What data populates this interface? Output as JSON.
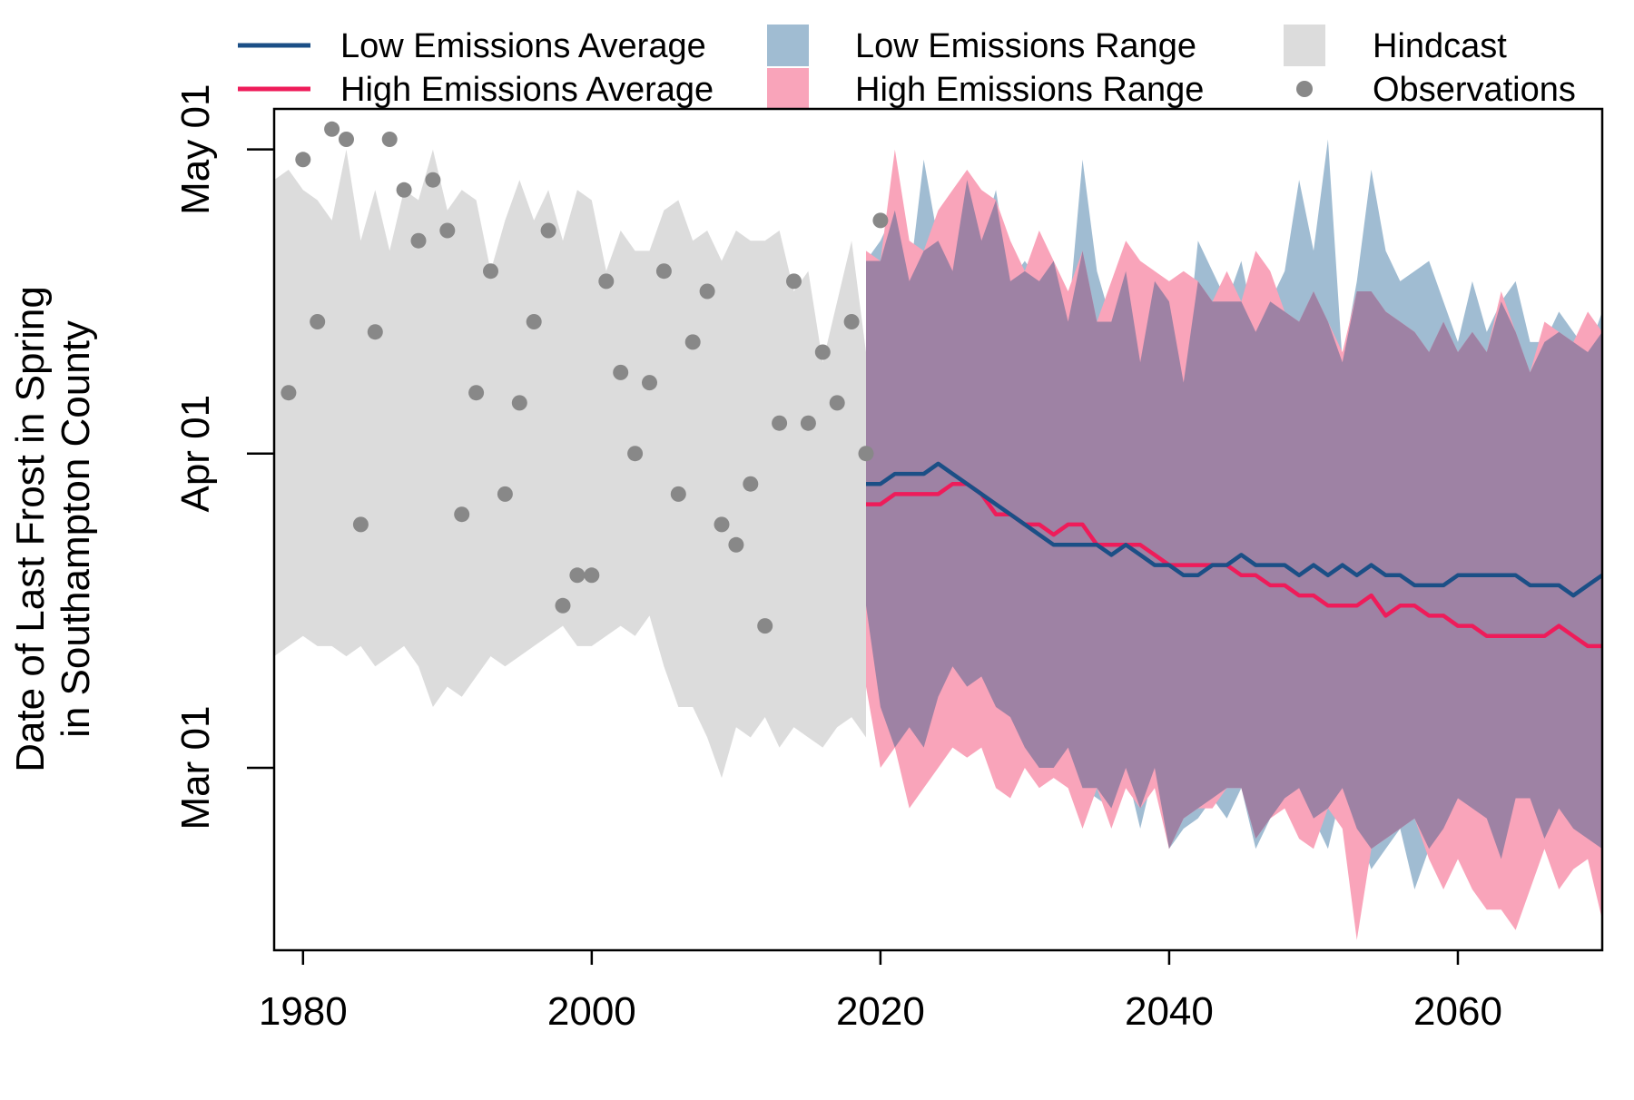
{
  "chart_data": {
    "type": "line",
    "title": "",
    "xlabel": "",
    "ylabel_line1": "Date of Last Frost in Spring",
    "ylabel_line2": "in Southampton County",
    "xlim": [
      1978,
      2070
    ],
    "ylim": [
      42,
      125
    ],
    "x_ticks": [
      {
        "value": 1980,
        "label": "1980"
      },
      {
        "value": 2000,
        "label": "2000"
      },
      {
        "value": 2020,
        "label": "2020"
      },
      {
        "value": 2040,
        "label": "2040"
      },
      {
        "value": 2060,
        "label": "2060"
      }
    ],
    "y_ticks": [
      {
        "value": 60,
        "label": "Mar 01"
      },
      {
        "value": 91,
        "label": "Apr 01"
      },
      {
        "value": 121,
        "label": "May 01"
      }
    ],
    "grid": false,
    "legend_position": "top",
    "legend": [
      {
        "key": "low_avg",
        "label": "Low Emissions Average",
        "kind": "line",
        "color": "#1b4f86"
      },
      {
        "key": "low_range",
        "label": "Low Emissions Range",
        "kind": "fill",
        "color": "#a0bcd2"
      },
      {
        "key": "hindcast",
        "label": "Hindcast",
        "kind": "fill",
        "color": "#dcdcdc"
      },
      {
        "key": "high_avg",
        "label": "High Emissions Average",
        "kind": "line",
        "color": "#ee1c5a"
      },
      {
        "key": "high_range",
        "label": "High Emissions Range",
        "kind": "fill",
        "color": "#f9a4ba"
      },
      {
        "key": "observations",
        "label": "Observations",
        "kind": "point",
        "color": "#888888"
      }
    ],
    "colors": {
      "hindcast": "#dcdcdc",
      "low_range": "#a0bcd2",
      "high_range": "#f9a4ba",
      "overlap": "#9e82a4",
      "low_avg": "#1b4f86",
      "high_avg": "#ee1c5a",
      "observations": "#888888"
    },
    "observations": {
      "x": [
        1979,
        1980,
        1981,
        1982,
        1983,
        1984,
        1985,
        1986,
        1987,
        1988,
        1989,
        1990,
        1991,
        1992,
        1993,
        1994,
        1995,
        1996,
        1997,
        1998,
        1999,
        2000,
        2001,
        2002,
        2003,
        2004,
        2005,
        2006,
        2007,
        2008,
        2009,
        2010,
        2011,
        2012,
        2013,
        2014,
        2015,
        2016,
        2017,
        2018,
        2019,
        2020
      ],
      "y": [
        97,
        120,
        104,
        123,
        122,
        84,
        103,
        122,
        117,
        112,
        118,
        113,
        85,
        97,
        109,
        87,
        96,
        104,
        113,
        76,
        79,
        79,
        108,
        99,
        91,
        98,
        109,
        87,
        102,
        107,
        84,
        82,
        88,
        74,
        94,
        108,
        94,
        101,
        96,
        104,
        91,
        114
      ]
    },
    "hindcast": {
      "x": [
        1978,
        1979,
        1980,
        1981,
        1982,
        1983,
        1984,
        1985,
        1986,
        1987,
        1988,
        1989,
        1990,
        1991,
        1992,
        1993,
        1994,
        1995,
        1996,
        1997,
        1998,
        1999,
        2000,
        2001,
        2002,
        2003,
        2004,
        2005,
        2006,
        2007,
        2008,
        2009,
        2010,
        2011,
        2012,
        2013,
        2014,
        2015,
        2016,
        2017,
        2018,
        2019
      ],
      "upper": [
        118,
        119,
        117,
        116,
        114,
        121,
        112,
        117,
        111,
        117,
        116,
        121,
        115,
        117,
        116,
        109,
        114,
        118,
        114,
        117,
        112,
        117,
        116,
        109,
        113,
        111,
        111,
        115,
        116,
        112,
        113,
        110,
        113,
        112,
        112,
        113,
        107,
        109,
        100,
        106,
        112,
        101
      ],
      "lower": [
        71,
        72,
        73,
        72,
        72,
        71,
        72,
        70,
        71,
        72,
        70,
        66,
        68,
        67,
        69,
        71,
        70,
        71,
        72,
        73,
        74,
        72,
        72,
        73,
        74,
        73,
        75,
        70,
        66,
        66,
        63,
        59,
        64,
        63,
        65,
        62,
        64,
        63,
        62,
        64,
        65,
        63
      ]
    },
    "low_emissions": {
      "x": [
        2019,
        2020,
        2021,
        2022,
        2023,
        2024,
        2025,
        2026,
        2027,
        2028,
        2029,
        2030,
        2031,
        2032,
        2033,
        2034,
        2035,
        2036,
        2037,
        2038,
        2039,
        2040,
        2041,
        2042,
        2043,
        2044,
        2045,
        2046,
        2047,
        2048,
        2049,
        2050,
        2051,
        2052,
        2053,
        2054,
        2055,
        2056,
        2057,
        2058,
        2059,
        2060,
        2061,
        2062,
        2063,
        2064,
        2065,
        2066,
        2067,
        2068,
        2069,
        2070
      ],
      "average": [
        88,
        88,
        89,
        89,
        89,
        90,
        89,
        88,
        87,
        86,
        85,
        84,
        83,
        82,
        82,
        82,
        82,
        81,
        82,
        81,
        80,
        80,
        79,
        79,
        80,
        80,
        81,
        80,
        80,
        80,
        79,
        80,
        79,
        80,
        79,
        80,
        79,
        79,
        78,
        78,
        78,
        79,
        79,
        79,
        79,
        79,
        78,
        78,
        78,
        77,
        78,
        79
      ],
      "upper": [
        110,
        112,
        115,
        108,
        120,
        112,
        109,
        118,
        112,
        117,
        108,
        110,
        108,
        110,
        104,
        120,
        109,
        104,
        109,
        100,
        108,
        106,
        98,
        112,
        109,
        106,
        110,
        103,
        106,
        109,
        118,
        111,
        122,
        100,
        108,
        119,
        111,
        108,
        109,
        110,
        106,
        102,
        108,
        103,
        106,
        108,
        102,
        102,
        105,
        103,
        101,
        105
      ],
      "lower": [
        76,
        66,
        62,
        64,
        62,
        67,
        70,
        68,
        69,
        66,
        65,
        62,
        60,
        60,
        62,
        58,
        57,
        56,
        60,
        54,
        60,
        52,
        54,
        55,
        57,
        55,
        58,
        52,
        55,
        57,
        58,
        55,
        52,
        58,
        54,
        50,
        52,
        54,
        48,
        52,
        54,
        57,
        56,
        55,
        51,
        57,
        57,
        53,
        56,
        54,
        53,
        52
      ]
    },
    "high_emissions": {
      "x": [
        2019,
        2020,
        2021,
        2022,
        2023,
        2024,
        2025,
        2026,
        2027,
        2028,
        2029,
        2030,
        2031,
        2032,
        2033,
        2034,
        2035,
        2036,
        2037,
        2038,
        2039,
        2040,
        2041,
        2042,
        2043,
        2044,
        2045,
        2046,
        2047,
        2048,
        2049,
        2050,
        2051,
        2052,
        2053,
        2054,
        2055,
        2056,
        2057,
        2058,
        2059,
        2060,
        2061,
        2062,
        2063,
        2064,
        2065,
        2066,
        2067,
        2068,
        2069,
        2070
      ],
      "average": [
        86,
        86,
        87,
        87,
        87,
        87,
        88,
        88,
        87,
        85,
        85,
        84,
        84,
        83,
        84,
        84,
        82,
        82,
        82,
        82,
        81,
        80,
        80,
        80,
        80,
        80,
        79,
        79,
        78,
        78,
        77,
        77,
        76,
        76,
        76,
        77,
        75,
        76,
        76,
        75,
        75,
        74,
        74,
        73,
        73,
        73,
        73,
        73,
        74,
        73,
        72,
        72
      ],
      "upper": [
        111,
        110,
        121,
        112,
        111,
        115,
        117,
        119,
        117,
        116,
        112,
        109,
        113,
        110,
        107,
        111,
        104,
        108,
        112,
        110,
        109,
        108,
        109,
        108,
        106,
        109,
        106,
        111,
        109,
        105,
        104,
        107,
        104,
        101,
        107,
        107,
        105,
        104,
        103,
        101,
        104,
        101,
        103,
        101,
        107,
        103,
        99,
        104,
        103,
        102,
        105,
        103
      ],
      "lower": [
        68,
        60,
        62,
        56,
        58,
        60,
        62,
        61,
        62,
        58,
        57,
        60,
        58,
        59,
        58,
        54,
        58,
        54,
        58,
        56,
        58,
        52,
        55,
        56,
        56,
        58,
        58,
        53,
        55,
        56,
        53,
        52,
        56,
        54,
        43,
        52,
        53,
        54,
        55,
        51,
        48,
        51,
        48,
        46,
        46,
        44,
        48,
        52,
        48,
        50,
        51,
        45
      ]
    }
  }
}
